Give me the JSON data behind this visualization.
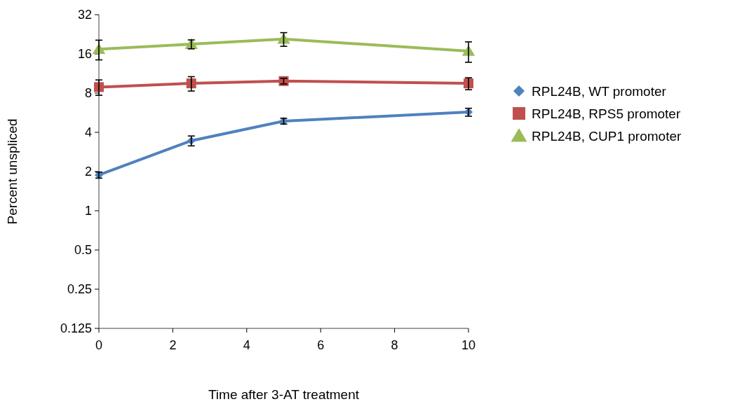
{
  "chart_data": {
    "type": "line",
    "xlabel": "Time after 3-AT treatment",
    "ylabel": "Percent unspliced",
    "log": "y",
    "xlim": [
      0,
      10
    ],
    "xticks": [
      0,
      2,
      4,
      6,
      8,
      10
    ],
    "ylim": [
      0.125,
      32
    ],
    "yticks": [
      0.125,
      0.25,
      0.5,
      1,
      2,
      4,
      8,
      16,
      32
    ],
    "grid": false,
    "legend": "right",
    "line_style": "solid",
    "series": [
      {
        "name": "RPL24B, WT promoter",
        "color": "#4f81bd",
        "marker": "diamond",
        "x": [
          0,
          2.5,
          5,
          10
        ],
        "values": [
          1.88,
          3.45,
          4.88,
          5.72
        ],
        "errors": [
          0.1,
          0.3,
          0.25,
          0.4
        ]
      },
      {
        "name": "RPL24B, RPS5 promoter",
        "color": "#c0504d",
        "marker": "square",
        "x": [
          0,
          2.5,
          5,
          10
        ],
        "values": [
          8.9,
          9.5,
          9.9,
          9.5
        ],
        "errors": [
          1.2,
          1.2,
          0.5,
          1.0
        ]
      },
      {
        "name": "RPL24B, CUP1 promoter",
        "color": "#9bbb59",
        "marker": "triangle",
        "x": [
          0,
          2.5,
          5,
          10
        ],
        "values": [
          17.4,
          19.0,
          20.8,
          16.8
        ],
        "errors": [
          3,
          1.5,
          2.5,
          3
        ]
      }
    ]
  }
}
